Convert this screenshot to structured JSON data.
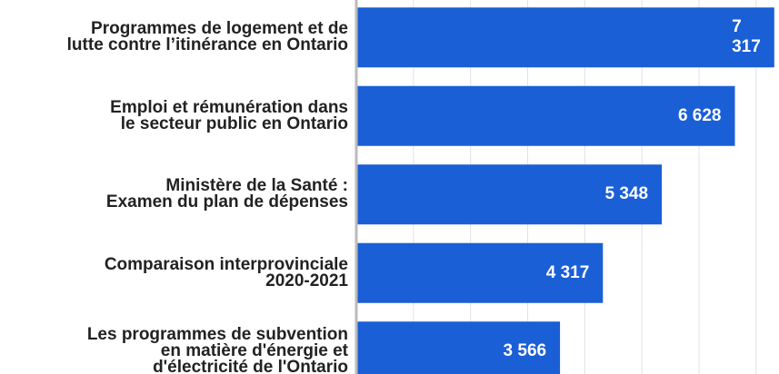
{
  "chart_data": {
    "type": "bar",
    "orientation": "horizontal",
    "categories": [
      "Programmes de logement et de\nlutte contre l’itinérance en Ontario",
      "Emploi et rémunération dans\nle secteur public en Ontario",
      "Ministère de la Santé :\nExamen du plan de dépenses",
      "Comparaison interprovinciale\n2020-2021",
      "Les programmes de subvention\nen matière d'énergie et\nd'électricité de l'Ontario"
    ],
    "values": [
      7317,
      6628,
      5348,
      4317,
      3566
    ],
    "value_labels": [
      "7 317",
      "6 628",
      "5 348",
      "4 317",
      "3 566"
    ],
    "color": "#1a5fd6",
    "xlim": [
      0,
      7400
    ],
    "xticks": [
      0,
      1000,
      2000,
      3000,
      4000,
      5000,
      6000,
      7000
    ],
    "grid": true
  }
}
